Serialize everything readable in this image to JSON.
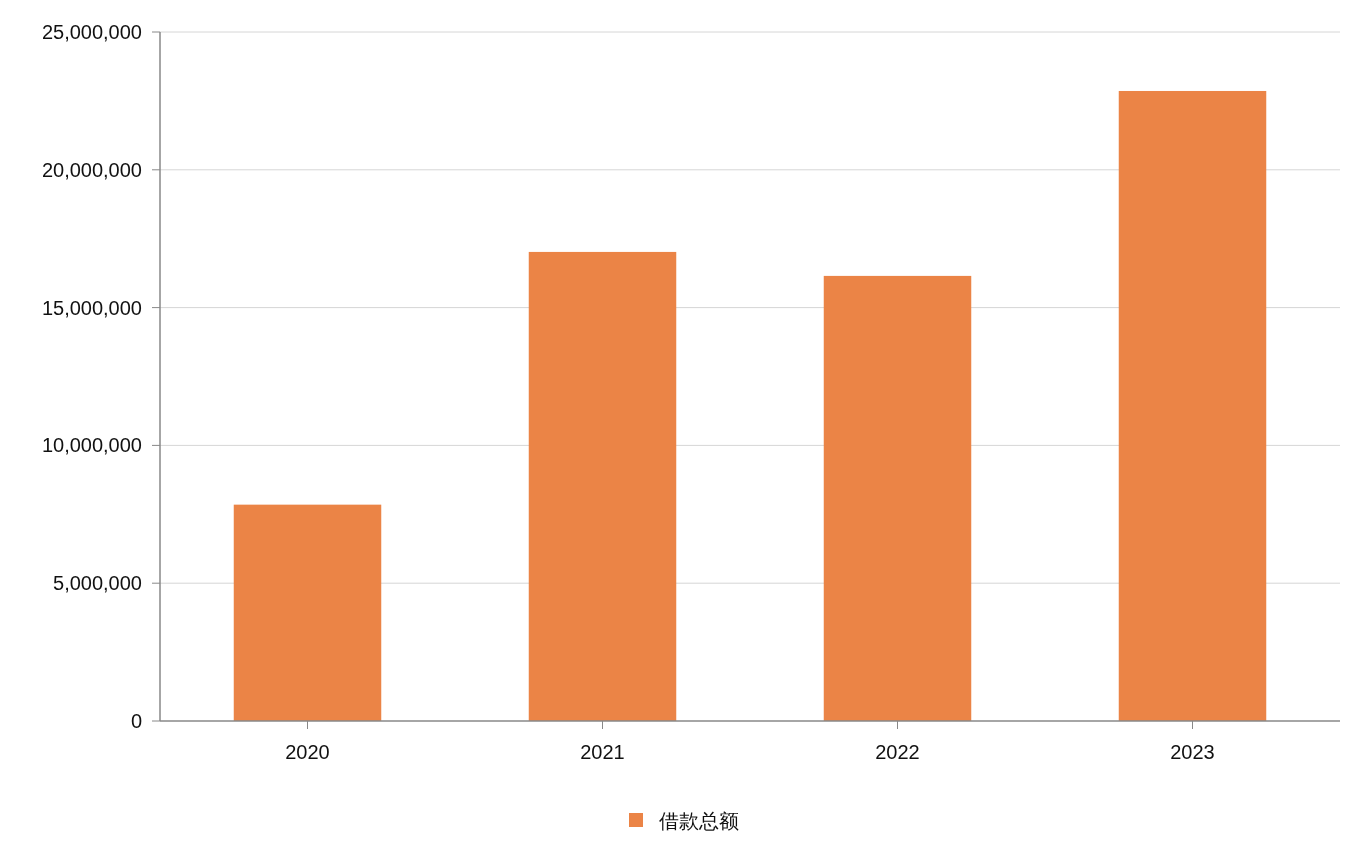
{
  "chart_data": {
    "type": "bar",
    "categories": [
      "2020",
      "2021",
      "2022",
      "2023"
    ],
    "series": [
      {
        "name": "借款总额",
        "color": "#eb8446",
        "values": [
          7850000,
          17020000,
          16150000,
          22860000
        ]
      }
    ],
    "ylim": [
      0,
      25000000
    ],
    "yticks": [
      {
        "value": 0,
        "label": "0"
      },
      {
        "value": 5000000,
        "label": "5,000,000"
      },
      {
        "value": 10000000,
        "label": "10,000,000"
      },
      {
        "value": 15000000,
        "label": "15,000,000"
      },
      {
        "value": 20000000,
        "label": "20,000,000"
      },
      {
        "value": 25000000,
        "label": "25,000,000"
      }
    ],
    "grid": "y",
    "legend": "bottom"
  }
}
